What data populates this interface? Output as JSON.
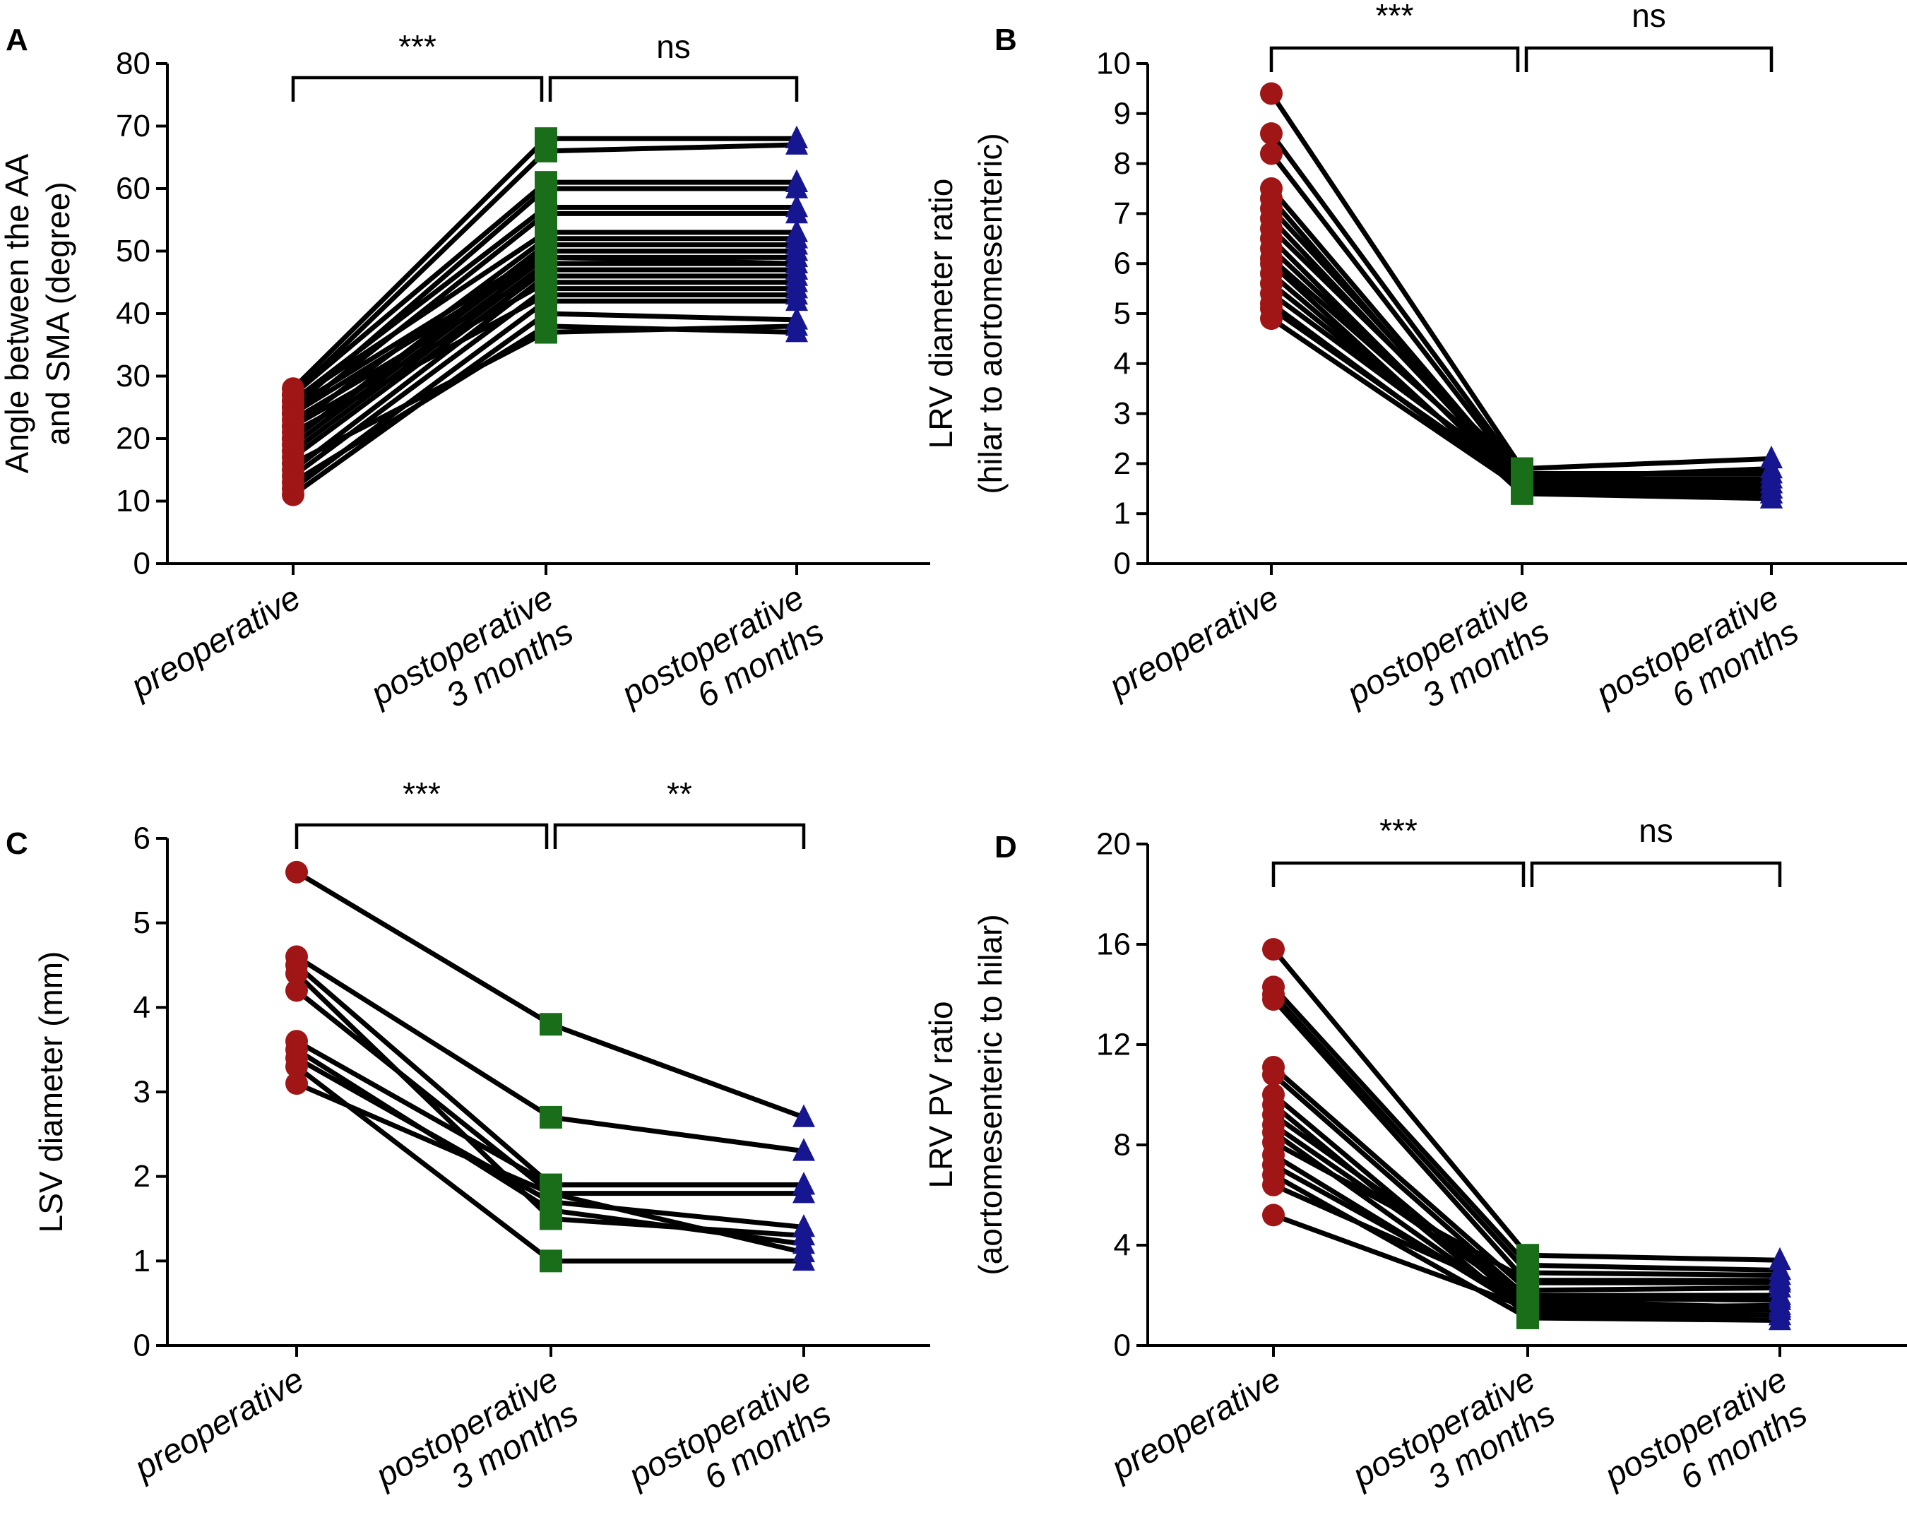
{
  "colors": {
    "preoperative": "#a01515",
    "postop_3m": "#1a6e1a",
    "postop_6m": "#161690",
    "line": "#000000"
  },
  "chart_data": [
    {
      "panel": "A",
      "type": "line",
      "ylabel_lines": [
        "Angle between the AA",
        "and SMA (degree)"
      ],
      "ylim": [
        0,
        80
      ],
      "yticks": [
        "0",
        "10",
        "20",
        "30",
        "40",
        "50",
        "60",
        "70",
        "80"
      ],
      "categories": [
        [
          "preoperative"
        ],
        [
          "postoperative",
          "3 months"
        ],
        [
          "postoperative",
          "6 months"
        ]
      ],
      "markers": [
        "circle",
        "square",
        "triangle"
      ],
      "significance": [
        "***",
        "ns"
      ],
      "subjects": [
        [
          11,
          40,
          39
        ],
        [
          12,
          42,
          42
        ],
        [
          13,
          38,
          37
        ],
        [
          14,
          44,
          44
        ],
        [
          15,
          46,
          46
        ],
        [
          16,
          37,
          38
        ],
        [
          17,
          47,
          47
        ],
        [
          18,
          48,
          48
        ],
        [
          19,
          49,
          48
        ],
        [
          20,
          50,
          50
        ],
        [
          20,
          51,
          51
        ],
        [
          21,
          43,
          43
        ],
        [
          22,
          52,
          52
        ],
        [
          22,
          45,
          45
        ],
        [
          23,
          47,
          47
        ],
        [
          24,
          56,
          56
        ],
        [
          24,
          49,
          49
        ],
        [
          25,
          50,
          50
        ],
        [
          25,
          60,
          60
        ],
        [
          26,
          53,
          53
        ],
        [
          26,
          57,
          57
        ],
        [
          27,
          61,
          61
        ],
        [
          27,
          66,
          67
        ],
        [
          28,
          68,
          68
        ]
      ]
    },
    {
      "panel": "B",
      "type": "line",
      "ylabel_lines": [
        "LRV diameter ratio",
        "(hilar to aortomesenteric)"
      ],
      "ylim": [
        0,
        10
      ],
      "yticks": [
        "0",
        "1",
        "2",
        "3",
        "4",
        "5",
        "6",
        "7",
        "8",
        "9",
        "10"
      ],
      "categories": [
        [
          "preoperative"
        ],
        [
          "postoperative",
          "3 months"
        ],
        [
          "postoperative",
          "6 months"
        ]
      ],
      "markers": [
        "circle",
        "square",
        "triangle"
      ],
      "significance": [
        "***",
        "ns"
      ],
      "subjects": [
        [
          9.4,
          1.9,
          2.1
        ],
        [
          8.6,
          1.8,
          1.8
        ],
        [
          8.2,
          1.7,
          1.7
        ],
        [
          7.5,
          1.6,
          1.6
        ],
        [
          7.3,
          1.5,
          1.5
        ],
        [
          7.1,
          1.7,
          1.9
        ],
        [
          6.9,
          1.6,
          1.6
        ],
        [
          6.7,
          1.8,
          1.4
        ],
        [
          6.5,
          1.5,
          1.5
        ],
        [
          6.3,
          1.6,
          1.7
        ],
        [
          6.1,
          1.7,
          1.6
        ],
        [
          6.0,
          1.4,
          1.3
        ],
        [
          5.8,
          1.5,
          1.4
        ],
        [
          5.6,
          1.6,
          1.5
        ],
        [
          5.4,
          1.7,
          1.6
        ],
        [
          5.2,
          1.5,
          1.5
        ],
        [
          5.1,
          1.6,
          1.4
        ],
        [
          4.9,
          1.5,
          1.3
        ]
      ]
    },
    {
      "panel": "C",
      "type": "line",
      "ylabel_lines": [
        "LSV diameter (mm)"
      ],
      "ylim": [
        0,
        6
      ],
      "yticks": [
        "0",
        "1",
        "2",
        "3",
        "4",
        "5",
        "6"
      ],
      "categories": [
        [
          "preoperative"
        ],
        [
          "postoperative",
          "3 months"
        ],
        [
          "postoperative",
          "6 months"
        ]
      ],
      "markers": [
        "circle",
        "square",
        "triangle"
      ],
      "significance": [
        "***",
        "**"
      ],
      "subjects": [
        [
          5.6,
          3.8,
          2.7
        ],
        [
          4.6,
          2.7,
          2.3
        ],
        [
          4.5,
          1.9,
          1.9
        ],
        [
          4.4,
          1.5,
          1.3
        ],
        [
          4.2,
          1.8,
          1.8
        ],
        [
          3.6,
          1.9,
          1.9
        ],
        [
          3.5,
          1.6,
          1.2
        ],
        [
          3.4,
          1.7,
          1.4
        ],
        [
          3.3,
          1.0,
          1.0
        ],
        [
          3.1,
          1.8,
          1.1
        ]
      ]
    },
    {
      "panel": "D",
      "type": "line",
      "ylabel_lines": [
        "LRV PV ratio",
        "(aortomesenteric to hilar)"
      ],
      "ylim": [
        0,
        20
      ],
      "yticks": [
        "0",
        "4",
        "8",
        "12",
        "16",
        "20"
      ],
      "categories": [
        [
          "preoperative"
        ],
        [
          "postoperative",
          "3 months"
        ],
        [
          "postoperative",
          "6 months"
        ]
      ],
      "markers": [
        "circle",
        "square",
        "triangle"
      ],
      "significance": [
        "***",
        "ns"
      ],
      "subjects": [
        [
          15.8,
          3.6,
          3.4
        ],
        [
          14.3,
          3.2,
          3.0
        ],
        [
          14.0,
          2.9,
          2.8
        ],
        [
          13.8,
          2.5,
          2.5
        ],
        [
          11.1,
          2.2,
          2.3
        ],
        [
          10.8,
          1.9,
          1.8
        ],
        [
          10.0,
          1.5,
          1.6
        ],
        [
          9.6,
          1.2,
          1.2
        ],
        [
          9.2,
          2.0,
          2.0
        ],
        [
          8.8,
          1.8,
          1.5
        ],
        [
          8.5,
          1.3,
          1.2
        ],
        [
          8.1,
          2.6,
          2.6
        ],
        [
          7.6,
          1.4,
          1.4
        ],
        [
          7.2,
          1.6,
          1.5
        ],
        [
          6.8,
          1.1,
          1.0
        ],
        [
          6.4,
          1.9,
          1.9
        ],
        [
          5.2,
          1.5,
          1.4
        ]
      ]
    }
  ]
}
